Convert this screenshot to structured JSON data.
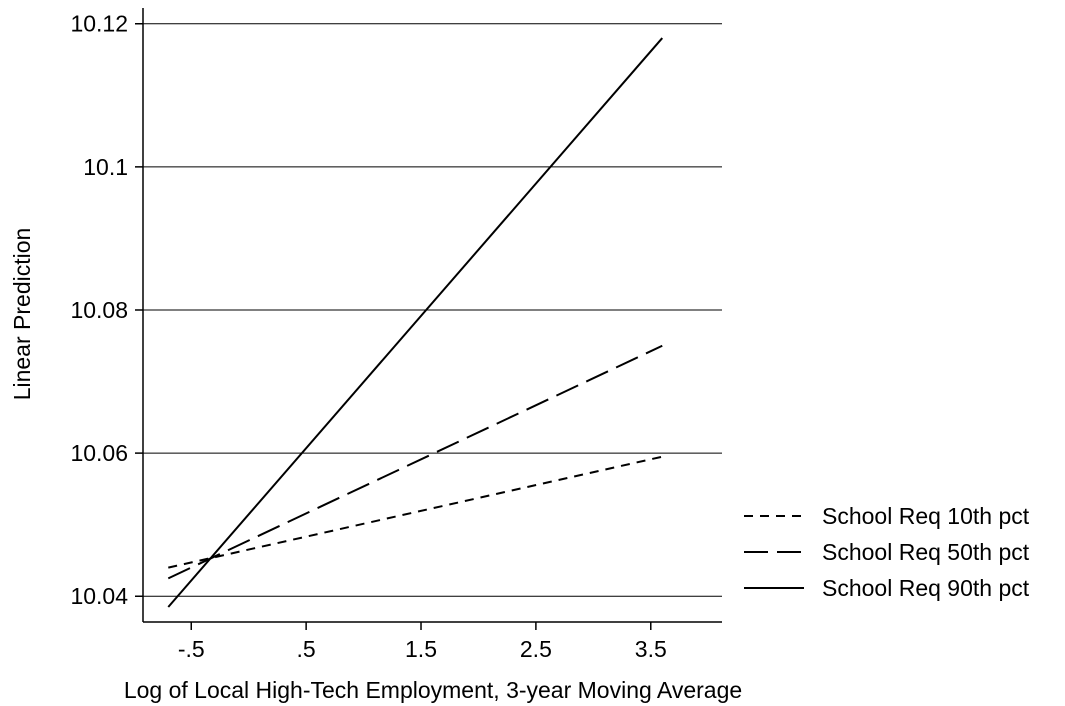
{
  "chart_data": {
    "type": "line",
    "title": "",
    "xlabel": "Log of Local High-Tech Employment, 3-year Moving Average",
    "ylabel": "Linear Prediction",
    "xlim": [
      -0.92,
      4.12
    ],
    "ylim": [
      10.0364,
      10.1222
    ],
    "x_ticks": [
      -0.5,
      0.5,
      1.5,
      2.5,
      3.5
    ],
    "x_tick_labels": [
      "-.5",
      ".5",
      "1.5",
      "2.5",
      "3.5"
    ],
    "y_ticks": [
      10.04,
      10.06,
      10.08,
      10.1,
      10.12
    ],
    "y_tick_labels": [
      "10.04",
      "10.06",
      "10.08",
      "10.1",
      "10.12"
    ],
    "grid": "horizontal",
    "legend_position": "right",
    "series": [
      {
        "name": "School Req 10th pct",
        "style": "short-dash",
        "x": [
          -0.7,
          3.6
        ],
        "y": [
          10.044,
          10.0595
        ]
      },
      {
        "name": "School Req 50th pct",
        "style": "long-dash",
        "x": [
          -0.7,
          3.6
        ],
        "y": [
          10.0425,
          10.075
        ]
      },
      {
        "name": "School Req 90th pct",
        "style": "solid",
        "x": [
          -0.7,
          3.6
        ],
        "y": [
          10.0385,
          10.118
        ]
      }
    ]
  }
}
